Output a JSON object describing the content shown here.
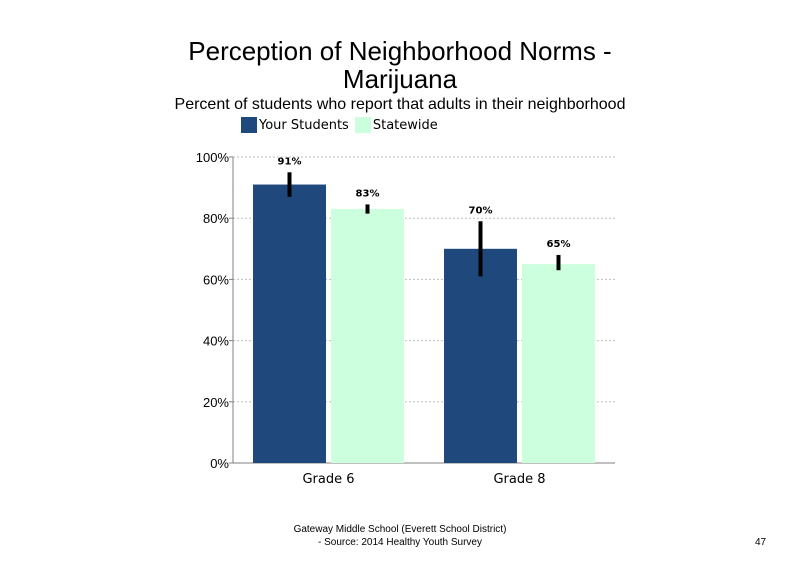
{
  "slide": {
    "title_line1": "Perception of Neighborhood Norms -",
    "title_line2": "Marijuana",
    "subtitle": "Percent of students who report that adults in their neighborhood",
    "footer_line1": "Gateway Middle School (Everett School District)",
    "footer_line2": "- Source: 2014 Healthy Youth Survey",
    "page_number": "47"
  },
  "colors": {
    "your_students": "#1f497d",
    "statewide": "#ccffdd",
    "error_bar": "#000000",
    "gridline": "#bfbfbf",
    "axis": "#808080"
  },
  "chart_data": {
    "type": "bar",
    "categories": [
      "Grade 6",
      "Grade 8"
    ],
    "series": [
      {
        "name": "Your Students",
        "values": [
          91,
          70
        ],
        "labels": [
          "91%",
          "70%"
        ],
        "error": [
          [
            87,
            95
          ],
          [
            61,
            79
          ]
        ]
      },
      {
        "name": "Statewide",
        "values": [
          83,
          65
        ],
        "labels": [
          "83%",
          "65%"
        ],
        "error": [
          [
            81.5,
            84.5
          ],
          [
            63,
            68
          ]
        ]
      }
    ],
    "yticks": [
      "0%",
      "20%",
      "40%",
      "60%",
      "80%",
      "100%"
    ],
    "ylim": [
      0,
      100
    ],
    "grid": true,
    "legend": "top"
  }
}
